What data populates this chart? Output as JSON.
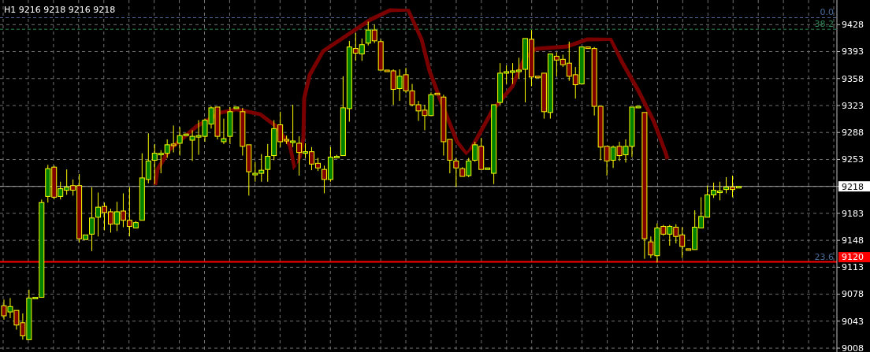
{
  "chart_data": {
    "type": "candlestick",
    "title": "H1  9216 9218 9216 9218",
    "categories": [
      null,
      null,
      null,
      null,
      null,
      null,
      null,
      null,
      null,
      null,
      null,
      null,
      null,
      null,
      null,
      null,
      null,
      null,
      null,
      null,
      null,
      null,
      null,
      null,
      null,
      null,
      null,
      null,
      null,
      null,
      null,
      null,
      null,
      null,
      null,
      null,
      null,
      null,
      null,
      null,
      null,
      null,
      null,
      null,
      null,
      null,
      null,
      null,
      null,
      null,
      null,
      null,
      null,
      null,
      null,
      null,
      null,
      null,
      null,
      null,
      null,
      null,
      null,
      null,
      null,
      null,
      null,
      null,
      null,
      null,
      null,
      null,
      null,
      null,
      null,
      null,
      null,
      null,
      null,
      null,
      null,
      null,
      null,
      null,
      null,
      null,
      null,
      null,
      null,
      null,
      null,
      null,
      null,
      null,
      null,
      null,
      null,
      null,
      null,
      null,
      null,
      null,
      null,
      null,
      null,
      null,
      null,
      null,
      null,
      null,
      null,
      null,
      null,
      null,
      null,
      null,
      null,
      null,
      null,
      null,
      null,
      null,
      null,
      null,
      null,
      null,
      null,
      null,
      null,
      null,
      null,
      null,
      null
    ],
    "ohlc": [
      [
        9063,
        9071,
        9045,
        9050
      ],
      [
        9055,
        9073,
        9047,
        9062
      ],
      [
        9057,
        9057,
        9032,
        9038
      ],
      [
        9041,
        9053,
        9019,
        9024
      ],
      [
        9019,
        9084,
        9019,
        9073
      ],
      [
        9072,
        9074,
        9071,
        9074
      ],
      [
        9074,
        9201,
        9073,
        9197
      ],
      [
        9205,
        9246,
        9197,
        9241
      ],
      [
        9243,
        9245,
        9201,
        9204
      ],
      [
        9205,
        9224,
        9201,
        9215
      ],
      [
        9213,
        9240,
        9207,
        9217
      ],
      [
        9219,
        9227,
        9206,
        9213
      ],
      [
        9219,
        9234,
        9145,
        9150
      ],
      [
        9149,
        9155,
        9149,
        9155
      ],
      [
        9156,
        9217,
        9134,
        9177
      ],
      [
        9178,
        9210,
        9153,
        9191
      ],
      [
        9192,
        9197,
        9161,
        9184
      ],
      [
        9185,
        9189,
        9158,
        9169
      ],
      [
        9169,
        9198,
        9160,
        9185
      ],
      [
        9186,
        9209,
        9165,
        9174
      ],
      [
        9174,
        9217,
        9153,
        9166
      ],
      [
        9164,
        9173,
        9163,
        9171
      ],
      [
        9174,
        9261,
        9173,
        9229
      ],
      [
        9227,
        9287,
        9222,
        9251
      ],
      [
        9252,
        9273,
        9221,
        9261
      ],
      [
        9260,
        9265,
        9235,
        9261
      ],
      [
        9261,
        9279,
        9255,
        9272
      ],
      [
        9273,
        9297,
        9262,
        9272
      ],
      [
        9274,
        9295,
        9258,
        9284
      ],
      [
        9285,
        9287,
        9284,
        9286
      ],
      [
        9278,
        9291,
        9251,
        9283
      ],
      [
        9283,
        9304,
        9259,
        9284
      ],
      [
        9283,
        9306,
        9276,
        9304
      ],
      [
        9299,
        9322,
        9293,
        9320
      ],
      [
        9321,
        9322,
        9279,
        9283
      ],
      [
        9276,
        9306,
        9273,
        9280
      ],
      [
        9283,
        9321,
        9273,
        9315
      ],
      [
        9320,
        9322,
        9319,
        9321
      ],
      [
        9315,
        9320,
        9258,
        9270
      ],
      [
        9272,
        9272,
        9206,
        9237
      ],
      [
        9234,
        9250,
        9224,
        9235
      ],
      [
        9235,
        9260,
        9224,
        9239
      ],
      [
        9240,
        9273,
        9224,
        9257
      ],
      [
        9258,
        9304,
        9252,
        9293
      ],
      [
        9298,
        9315,
        9269,
        9276
      ],
      [
        9279,
        9284,
        9273,
        9278
      ],
      [
        9276,
        9324,
        9269,
        9277
      ],
      [
        9274,
        9283,
        9232,
        9262
      ],
      [
        9262,
        9274,
        9255,
        9263
      ],
      [
        9263,
        9269,
        9239,
        9247
      ],
      [
        9248,
        9255,
        9238,
        9242
      ],
      [
        9240,
        9245,
        9209,
        9227
      ],
      [
        9227,
        9269,
        9224,
        9256
      ],
      [
        9256,
        9259,
        9255,
        9257
      ],
      [
        9258,
        9361,
        9257,
        9320
      ],
      [
        9319,
        9407,
        9302,
        9399
      ],
      [
        9397,
        9417,
        9381,
        9391
      ],
      [
        9390,
        9410,
        9381,
        9402
      ],
      [
        9404,
        9432,
        9401,
        9421
      ],
      [
        9421,
        9428,
        9404,
        9407
      ],
      [
        9406,
        9409,
        9368,
        9369
      ],
      [
        9369,
        9370,
        9367,
        9368
      ],
      [
        9368,
        9370,
        9324,
        9344
      ],
      [
        9345,
        9370,
        9329,
        9361
      ],
      [
        9363,
        9372,
        9339,
        9342
      ],
      [
        9342,
        9351,
        9322,
        9324
      ],
      [
        9324,
        9329,
        9303,
        9316
      ],
      [
        9317,
        9324,
        9291,
        9310
      ],
      [
        9310,
        9340,
        9309,
        9337
      ],
      [
        9339,
        9340,
        9337,
        9338
      ],
      [
        9334,
        9337,
        9258,
        9276
      ],
      [
        9279,
        9279,
        9235,
        9252
      ],
      [
        9251,
        9255,
        9217,
        9242
      ],
      [
        9241,
        9243,
        9230,
        9231
      ],
      [
        9232,
        9255,
        9230,
        9251
      ],
      [
        9252,
        9276,
        9250,
        9272
      ],
      [
        9270,
        9281,
        9239,
        9240
      ],
      [
        9241,
        9243,
        9240,
        9242
      ],
      [
        9235,
        9324,
        9221,
        9324
      ],
      [
        9327,
        9378,
        9324,
        9365
      ],
      [
        9366,
        9375,
        9351,
        9367
      ],
      [
        9366,
        9378,
        9351,
        9368
      ],
      [
        9368,
        9385,
        9358,
        9369
      ],
      [
        9370,
        9410,
        9327,
        9410
      ],
      [
        9409,
        9421,
        9348,
        9360
      ],
      [
        9361,
        9362,
        9358,
        9359
      ],
      [
        9365,
        9365,
        9306,
        9315
      ],
      [
        9314,
        9390,
        9306,
        9390
      ],
      [
        9387,
        9392,
        9361,
        9382
      ],
      [
        9383,
        9389,
        9373,
        9376
      ],
      [
        9378,
        9406,
        9355,
        9361
      ],
      [
        9363,
        9373,
        9332,
        9350
      ],
      [
        9351,
        9399,
        9350,
        9399
      ],
      [
        9399,
        9400,
        9397,
        9398
      ],
      [
        9397,
        9399,
        9310,
        9322
      ],
      [
        9322,
        9322,
        9252,
        9269
      ],
      [
        9270,
        9270,
        9232,
        9251
      ],
      [
        9252,
        9271,
        9242,
        9269
      ],
      [
        9270,
        9276,
        9251,
        9258
      ],
      [
        9259,
        9279,
        9249,
        9270
      ],
      [
        9270,
        9321,
        9256,
        9321
      ],
      [
        9321,
        9322,
        9320,
        9322
      ],
      [
        9314,
        9314,
        9124,
        9150
      ],
      [
        9146,
        9153,
        9125,
        9129
      ],
      [
        9128,
        9170,
        9119,
        9164
      ],
      [
        9166,
        9168,
        9154,
        9156
      ],
      [
        9156,
        9168,
        9141,
        9166
      ],
      [
        9165,
        9169,
        9144,
        9153
      ],
      [
        9155,
        9165,
        9125,
        9140
      ],
      [
        9137,
        9137,
        9135,
        9135
      ],
      [
        9136,
        9187,
        9136,
        9165
      ],
      [
        9164,
        9204,
        9163,
        9179
      ],
      [
        9178,
        9219,
        9177,
        9207
      ],
      [
        9207,
        9223,
        9203,
        9213
      ],
      [
        9210,
        9224,
        9200,
        9212
      ],
      [
        9214,
        9230,
        9209,
        9217
      ],
      [
        9217,
        9232,
        9204,
        9214
      ],
      [
        9216,
        9218,
        9216,
        9218
      ],
      null,
      null,
      null,
      null,
      null,
      null,
      null,
      null,
      null,
      null,
      null,
      null,
      null,
      null,
      null
    ],
    "ylim": [
      9004,
      9460
    ],
    "yticks": [
      9008,
      9043,
      9078,
      9113,
      9148,
      9183,
      9218,
      9253,
      9288,
      9323,
      9358,
      9393,
      9428
    ],
    "grid": true,
    "ref_lines": [
      {
        "axis": "y",
        "value": 9218,
        "label": "9218",
        "color": "#a0a0a0",
        "line_style": "solid"
      },
      {
        "axis": "y",
        "value": 9120,
        "label": "9120",
        "color": "#ff0000",
        "line_style": "solid"
      },
      {
        "axis": "y",
        "value": 9437,
        "color": "#4a6a9a",
        "line_style": "dashed"
      },
      {
        "axis": "y",
        "value": 9422,
        "color": "#2e8b57",
        "line_style": "dashed"
      }
    ],
    "annotations": [
      {
        "text": "0.0",
        "y": 9437
      },
      {
        "text": "38.2",
        "y": 9422
      },
      {
        "text": "23.6",
        "y": 9120
      }
    ]
  }
}
